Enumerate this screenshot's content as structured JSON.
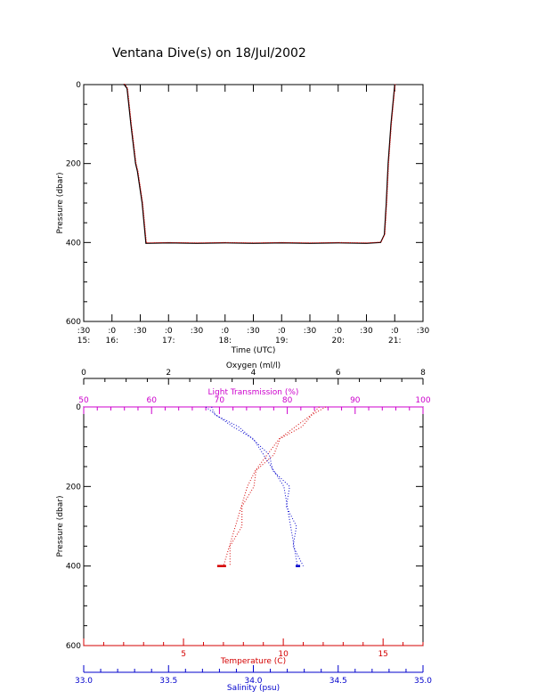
{
  "title": "Ventana Dive(s) on 18/Jul/2002",
  "colors": {
    "axis": "#000000",
    "temperature": "#d40000",
    "salinity": "#0000cc",
    "light": "#cc00cc",
    "oxygen": "#000000",
    "trace_dark": "#000000",
    "trace_red": "#d40000"
  },
  "chart_data": [
    {
      "type": "line",
      "xlabel": "Time (UTC)",
      "ylabel": "Pressure (dbar)",
      "yticks": [
        "0",
        "200",
        "400",
        "600"
      ],
      "ylim": [
        600,
        0
      ],
      "xlim_minutes": [
        930,
        1290
      ],
      "xticks_top": [
        ":30",
        ":0",
        ":30",
        ":0",
        ":30",
        ":0",
        ":30",
        ":0",
        ":30",
        ":0",
        ":30",
        ":0",
        ":30"
      ],
      "xticks_bottom": [
        "15:",
        "16:",
        "",
        "17:",
        "",
        "18:",
        "",
        "19:",
        "",
        "20:",
        "",
        "21:",
        ""
      ],
      "series": [
        {
          "x_time": [
            "16:12",
            "16:13",
            "16:16",
            "16:20",
            "16:24",
            "16:25",
            "16:27",
            "16:32",
            "16:36",
            "17:00",
            "17:30",
            "18:00",
            "18:30",
            "19:00",
            "19:30",
            "20:00",
            "20:30",
            "20:45",
            "20:49",
            "20:51",
            "20:53",
            "20:56",
            "21:00"
          ],
          "pressure": [
            0,
            0,
            10,
            100,
            180,
            200,
            220,
            300,
            402,
            401,
            402,
            401,
            402,
            401,
            402,
            401,
            402,
            400,
            380,
            300,
            200,
            100,
            0
          ]
        }
      ]
    },
    {
      "type": "line",
      "ylabel": "Pressure (dbar)",
      "yticks": [
        "0",
        "200",
        "400",
        "600"
      ],
      "ylim": [
        600,
        0
      ],
      "axes": {
        "oxygen": {
          "label": "Oxygen (ml/l)",
          "min": 0,
          "max": 8,
          "ticks": [
            "0",
            "2",
            "4",
            "6",
            "8"
          ]
        },
        "light": {
          "label": "Light Transmission (%)",
          "min": 50,
          "max": 100,
          "ticks": [
            "50",
            "60",
            "70",
            "80",
            "90",
            "100"
          ]
        },
        "temperature": {
          "label": "Temperature (C)",
          "min": 0,
          "max": 17,
          "ticks": [
            "5",
            "10",
            "15"
          ]
        },
        "salinity": {
          "label": "Salinity (psu)",
          "min": 33.0,
          "max": 35.0,
          "ticks": [
            "33.0",
            "33.5",
            "34.0",
            "34.5",
            "35.0"
          ]
        }
      },
      "series": [
        {
          "name": "Temperature",
          "pressure": [
            0,
            20,
            50,
            80,
            120,
            160,
            200,
            250,
            300,
            350,
            400
          ],
          "values": [
            11.8,
            11.4,
            10.6,
            9.8,
            9.2,
            8.6,
            8.2,
            7.9,
            7.6,
            7.3,
            7.0
          ]
        },
        {
          "name": "Salinity",
          "pressure": [
            0,
            20,
            50,
            80,
            120,
            160,
            200,
            250,
            300,
            350,
            400
          ],
          "values": [
            33.72,
            33.78,
            33.88,
            34.0,
            34.06,
            34.12,
            34.18,
            34.2,
            34.22,
            34.24,
            34.26
          ]
        }
      ]
    }
  ]
}
